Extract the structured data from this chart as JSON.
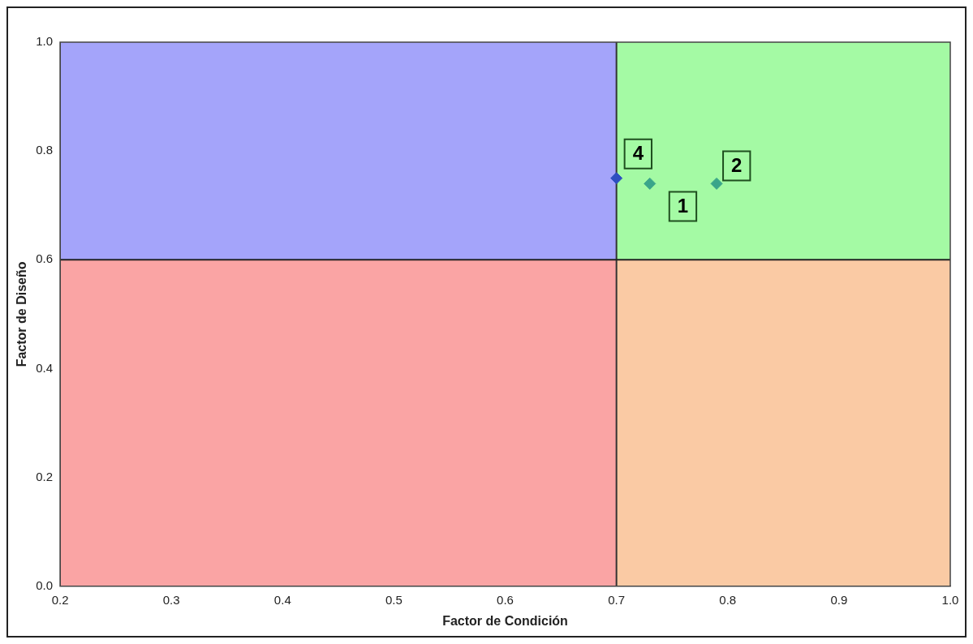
{
  "chart_data": {
    "type": "scatter",
    "xlabel": "Factor de Condición",
    "ylabel": "Factor de Diseño",
    "xlim": [
      0.2,
      1.0
    ],
    "xticks": [
      0.2,
      0.3,
      0.4,
      0.5,
      0.6,
      0.7,
      0.8,
      0.9,
      {
        "value": 1,
        "label": "1.0"
      }
    ],
    "ylim": [
      0.0,
      1.0
    ],
    "yticks": [
      {
        "value": 0,
        "label": "0.0"
      },
      0.2,
      0.4,
      0.6,
      0.8,
      {
        "value": 1,
        "label": "1.0"
      }
    ],
    "marker": "diamond",
    "grid": false,
    "legend": false,
    "series": [
      {
        "name": "4",
        "color": "#2e4fc0",
        "x": [
          0.7
        ],
        "values": [
          0.75
        ]
      },
      {
        "name": "1",
        "color": "#3aa58a",
        "x": [
          0.73
        ],
        "values": [
          0.74
        ]
      },
      {
        "name": "2",
        "color": "#3aa58a",
        "x": [
          0.79
        ],
        "values": [
          0.74
        ]
      }
    ],
    "ref_lines": [
      {
        "axis": "x",
        "value": 0.7,
        "color": "#333333"
      },
      {
        "axis": "y",
        "value": 0.6,
        "color": "#222222"
      }
    ]
  }
}
